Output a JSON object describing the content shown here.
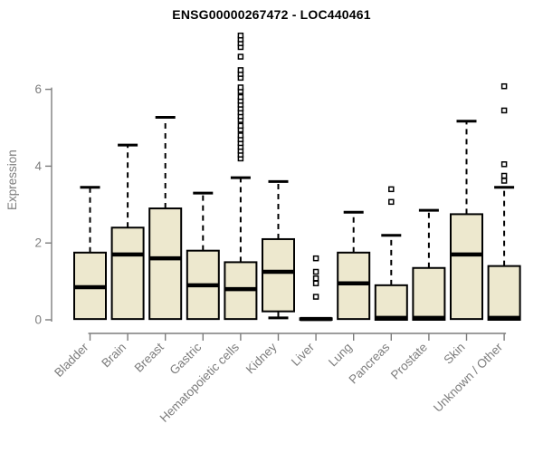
{
  "chart_data": {
    "type": "boxplot",
    "title": "ENSG00000267472 - LOC440461",
    "ylabel": "Expression",
    "xlabel": "",
    "yticks": [
      0,
      2,
      4,
      6
    ],
    "ylim": [
      -0.2,
      7.5
    ],
    "grid": false,
    "legend": null,
    "marker": "open-square",
    "colors": {
      "box_fill": "#EDE8CE",
      "box_stroke": "#000000",
      "median": "#000000",
      "whisker": "#000000",
      "axis": "#7D7D7D",
      "title": "#000000",
      "background": "#FFFFFF"
    },
    "categories": [
      "Bladder",
      "Brain",
      "Breast",
      "Gastric",
      "Hematopoietic cells",
      "Kidney",
      "Liver",
      "Lung",
      "Pancreas",
      "Prostate",
      "Skin",
      "Unknown / Other"
    ],
    "boxes": [
      {
        "category": "Bladder",
        "low": 0.02,
        "q1": 0.02,
        "median": 0.85,
        "q3": 1.75,
        "high": 3.45,
        "outliers": []
      },
      {
        "category": "Brain",
        "low": 0.02,
        "q1": 0.02,
        "median": 1.7,
        "q3": 2.4,
        "high": 4.55,
        "outliers": []
      },
      {
        "category": "Breast",
        "low": 0.02,
        "q1": 0.02,
        "median": 1.6,
        "q3": 2.9,
        "high": 5.27,
        "outliers": []
      },
      {
        "category": "Gastric",
        "low": 0.02,
        "q1": 0.02,
        "median": 0.9,
        "q3": 1.8,
        "high": 3.3,
        "outliers": []
      },
      {
        "category": "Hematopoietic cells",
        "low": 0.02,
        "q1": 0.02,
        "median": 0.8,
        "q3": 1.5,
        "high": 3.7,
        "outliers": [
          4.2,
          4.3,
          4.4,
          4.5,
          4.6,
          4.7,
          4.8,
          4.95,
          5.05,
          5.2,
          5.3,
          5.4,
          5.5,
          5.6,
          5.7,
          5.8,
          5.95,
          6.05,
          6.3,
          6.4,
          6.5,
          6.85,
          7.1,
          7.2,
          7.3,
          7.4
        ]
      },
      {
        "category": "Kidney",
        "low": 0.05,
        "q1": 0.22,
        "median": 1.25,
        "q3": 2.1,
        "high": 3.6,
        "outliers": []
      },
      {
        "category": "Liver",
        "low": 0.0,
        "q1": 0.0,
        "median": 0.02,
        "q3": 0.04,
        "high": 0.04,
        "outliers": [
          0.6,
          0.95,
          1.08,
          1.25,
          1.6
        ]
      },
      {
        "category": "Lung",
        "low": 0.02,
        "q1": 0.02,
        "median": 0.95,
        "q3": 1.75,
        "high": 2.8,
        "outliers": []
      },
      {
        "category": "Pancreas",
        "low": 0.0,
        "q1": 0.0,
        "median": 0.05,
        "q3": 0.9,
        "high": 2.2,
        "outliers": [
          3.07,
          3.4
        ]
      },
      {
        "category": "Prostate",
        "low": 0.0,
        "q1": 0.0,
        "median": 0.05,
        "q3": 1.35,
        "high": 2.85,
        "outliers": []
      },
      {
        "category": "Skin",
        "low": 0.02,
        "q1": 0.02,
        "median": 1.7,
        "q3": 2.75,
        "high": 5.17,
        "outliers": []
      },
      {
        "category": "Unknown / Other",
        "low": 0.0,
        "q1": 0.0,
        "median": 0.05,
        "q3": 1.4,
        "high": 3.45,
        "outliers": [
          3.62,
          3.75,
          4.05,
          5.45,
          6.08
        ]
      }
    ]
  }
}
